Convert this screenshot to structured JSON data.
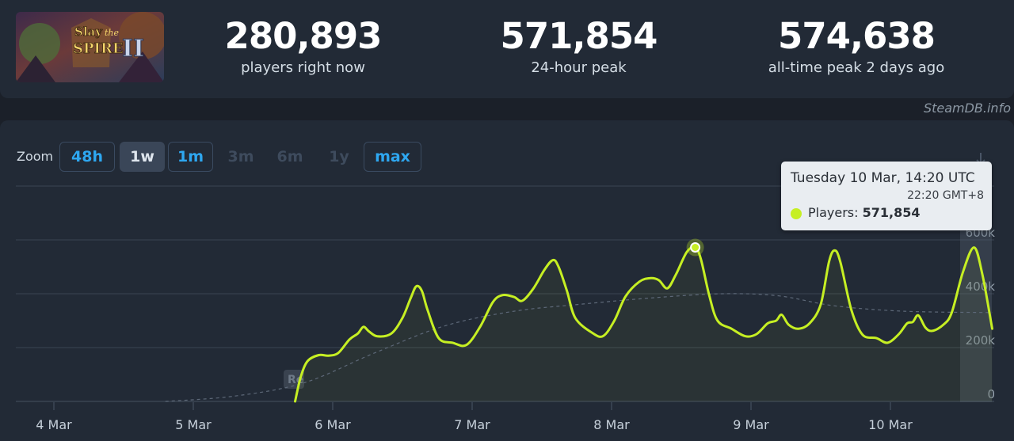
{
  "stats": [
    {
      "value": "280,893",
      "label": "players right now"
    },
    {
      "value": "571,854",
      "label": "24-hour peak"
    },
    {
      "value": "574,638",
      "label": "all-time peak 2 days ago"
    }
  ],
  "watermark": "SteamDB.info",
  "zoom": {
    "label": "Zoom",
    "buttons": [
      {
        "label": "48h",
        "state": "avail"
      },
      {
        "label": "1w",
        "state": "active"
      },
      {
        "label": "1m",
        "state": "avail"
      },
      {
        "label": "3m",
        "state": "disabled"
      },
      {
        "label": "6m",
        "state": "disabled"
      },
      {
        "label": "1y",
        "state": "disabled"
      },
      {
        "label": "max",
        "state": "avail"
      }
    ]
  },
  "game_art": {
    "title_line1": "Slay",
    "title_mid": "the",
    "title_line2": "SPIRE",
    "numeral": "II"
  },
  "release_flag": "Re",
  "tooltip": {
    "date": "Tuesday 10 Mar, 14:20 UTC",
    "local": "22:20 GMT+8",
    "series": "Players:",
    "value": "571,854"
  },
  "colors": {
    "line": "#c6ef23",
    "avg": "#5d6878",
    "grid": "#3a4452"
  },
  "chart_data": {
    "type": "line",
    "x_tick_labels": [
      "4 Mar",
      "5 Mar",
      "6 Mar",
      "7 Mar",
      "8 Mar",
      "9 Mar",
      "10 Mar"
    ],
    "y_tick_labels": [
      "0",
      "200k",
      "400k",
      "600k"
    ],
    "ylim": [
      0,
      800000
    ],
    "xlim_days": [
      3.6,
      10.73
    ],
    "grid": true,
    "series": [
      {
        "values_day_players": [
          [
            5.73,
            0
          ],
          [
            5.77,
            90000
          ],
          [
            5.82,
            150000
          ],
          [
            5.9,
            172000
          ],
          [
            5.97,
            170000
          ],
          [
            6.04,
            180000
          ],
          [
            6.12,
            230000
          ],
          [
            6.18,
            252000
          ],
          [
            6.22,
            277000
          ],
          [
            6.26,
            260000
          ],
          [
            6.32,
            242000
          ],
          [
            6.42,
            252000
          ],
          [
            6.5,
            310000
          ],
          [
            6.56,
            385000
          ],
          [
            6.6,
            428000
          ],
          [
            6.64,
            410000
          ],
          [
            6.68,
            340000
          ],
          [
            6.76,
            235000
          ],
          [
            6.86,
            218000
          ],
          [
            6.96,
            210000
          ],
          [
            7.06,
            280000
          ],
          [
            7.15,
            370000
          ],
          [
            7.22,
            395000
          ],
          [
            7.3,
            388000
          ],
          [
            7.36,
            374000
          ],
          [
            7.44,
            420000
          ],
          [
            7.52,
            490000
          ],
          [
            7.58,
            525000
          ],
          [
            7.62,
            500000
          ],
          [
            7.68,
            410000
          ],
          [
            7.74,
            310000
          ],
          [
            7.86,
            255000
          ],
          [
            7.94,
            243000
          ],
          [
            8.02,
            300000
          ],
          [
            8.1,
            390000
          ],
          [
            8.2,
            445000
          ],
          [
            8.28,
            458000
          ],
          [
            8.34,
            450000
          ],
          [
            8.4,
            420000
          ],
          [
            8.46,
            470000
          ],
          [
            8.54,
            555000
          ],
          [
            8.6,
            572000
          ],
          [
            8.64,
            530000
          ],
          [
            8.7,
            395000
          ],
          [
            8.76,
            300000
          ],
          [
            8.86,
            270000
          ],
          [
            8.96,
            242000
          ],
          [
            9.04,
            250000
          ],
          [
            9.12,
            290000
          ],
          [
            9.18,
            300000
          ],
          [
            9.22,
            322000
          ],
          [
            9.27,
            285000
          ],
          [
            9.34,
            270000
          ],
          [
            9.42,
            290000
          ],
          [
            9.5,
            360000
          ],
          [
            9.56,
            520000
          ],
          [
            9.6,
            561000
          ],
          [
            9.64,
            520000
          ],
          [
            9.72,
            340000
          ],
          [
            9.8,
            248000
          ],
          [
            9.9,
            235000
          ],
          [
            9.98,
            218000
          ],
          [
            10.06,
            250000
          ],
          [
            10.12,
            290000
          ],
          [
            10.16,
            295000
          ],
          [
            10.2,
            320000
          ],
          [
            10.25,
            275000
          ],
          [
            10.3,
            262000
          ],
          [
            10.38,
            285000
          ],
          [
            10.44,
            330000
          ],
          [
            10.52,
            480000
          ],
          [
            10.6,
            571854
          ],
          [
            10.66,
            470000
          ],
          [
            10.73,
            270000
          ]
        ]
      },
      {
        "values_day_players": [
          [
            4.8,
            0
          ],
          [
            5.3,
            20000
          ],
          [
            5.8,
            70000
          ],
          [
            6.3,
            180000
          ],
          [
            6.8,
            280000
          ],
          [
            7.3,
            335000
          ],
          [
            7.8,
            362000
          ],
          [
            8.3,
            385000
          ],
          [
            8.8,
            400000
          ],
          [
            9.2,
            392000
          ],
          [
            9.6,
            355000
          ],
          [
            10.1,
            335000
          ],
          [
            10.73,
            330000
          ]
        ]
      }
    ]
  }
}
